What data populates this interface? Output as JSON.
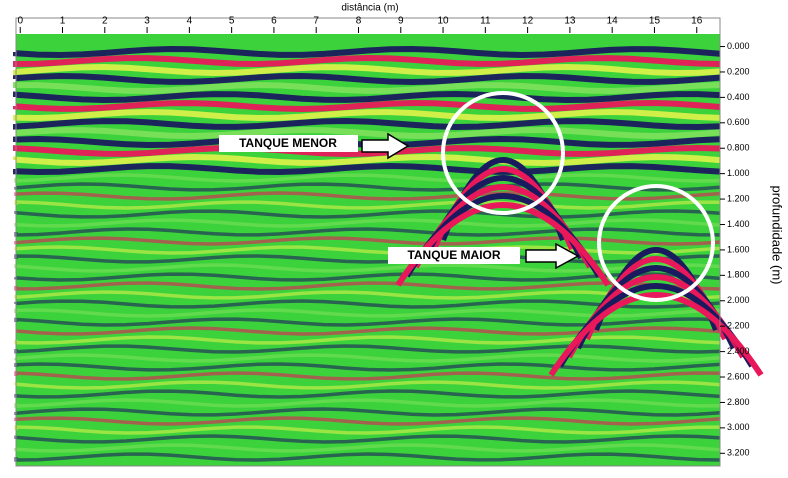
{
  "chart_data": {
    "type": "radargram",
    "xlabel": "distância (m)",
    "ylabel": "profundidade (m)",
    "xlim": [
      -0.1,
      16.55
    ],
    "xticks": [
      0,
      1,
      2,
      3,
      4,
      5,
      6,
      7,
      8,
      9,
      10,
      11,
      12,
      13,
      14,
      15,
      16
    ],
    "ylim": [
      -0.02,
      3.3
    ],
    "yticks": [
      {
        "value": 0,
        "label": "0.000"
      },
      {
        "value": 0.2,
        "label": "0.200"
      },
      {
        "value": 0.4,
        "label": "0.400"
      },
      {
        "value": 0.6,
        "label": "0.600"
      },
      {
        "value": 0.8,
        "label": "0.800"
      },
      {
        "value": 1.0,
        "label": "1.000"
      },
      {
        "value": 1.2,
        "label": "1.200"
      },
      {
        "value": 1.4,
        "label": "1.400"
      },
      {
        "value": 1.6,
        "label": "1.600"
      },
      {
        "value": 1.8,
        "label": "1.800"
      },
      {
        "value": 2.0,
        "label": "2.000"
      },
      {
        "value": 2.2,
        "label": "2.200"
      },
      {
        "value": 2.4,
        "label": "2.400"
      },
      {
        "value": 2.6,
        "label": "2.600"
      },
      {
        "value": 2.8,
        "label": "2.800"
      },
      {
        "value": 3.0,
        "label": "3.000"
      },
      {
        "value": 3.2,
        "label": "3.200"
      }
    ],
    "annotations": [
      "TANQUE MENOR",
      "TANQUE MAIOR"
    ]
  }
}
